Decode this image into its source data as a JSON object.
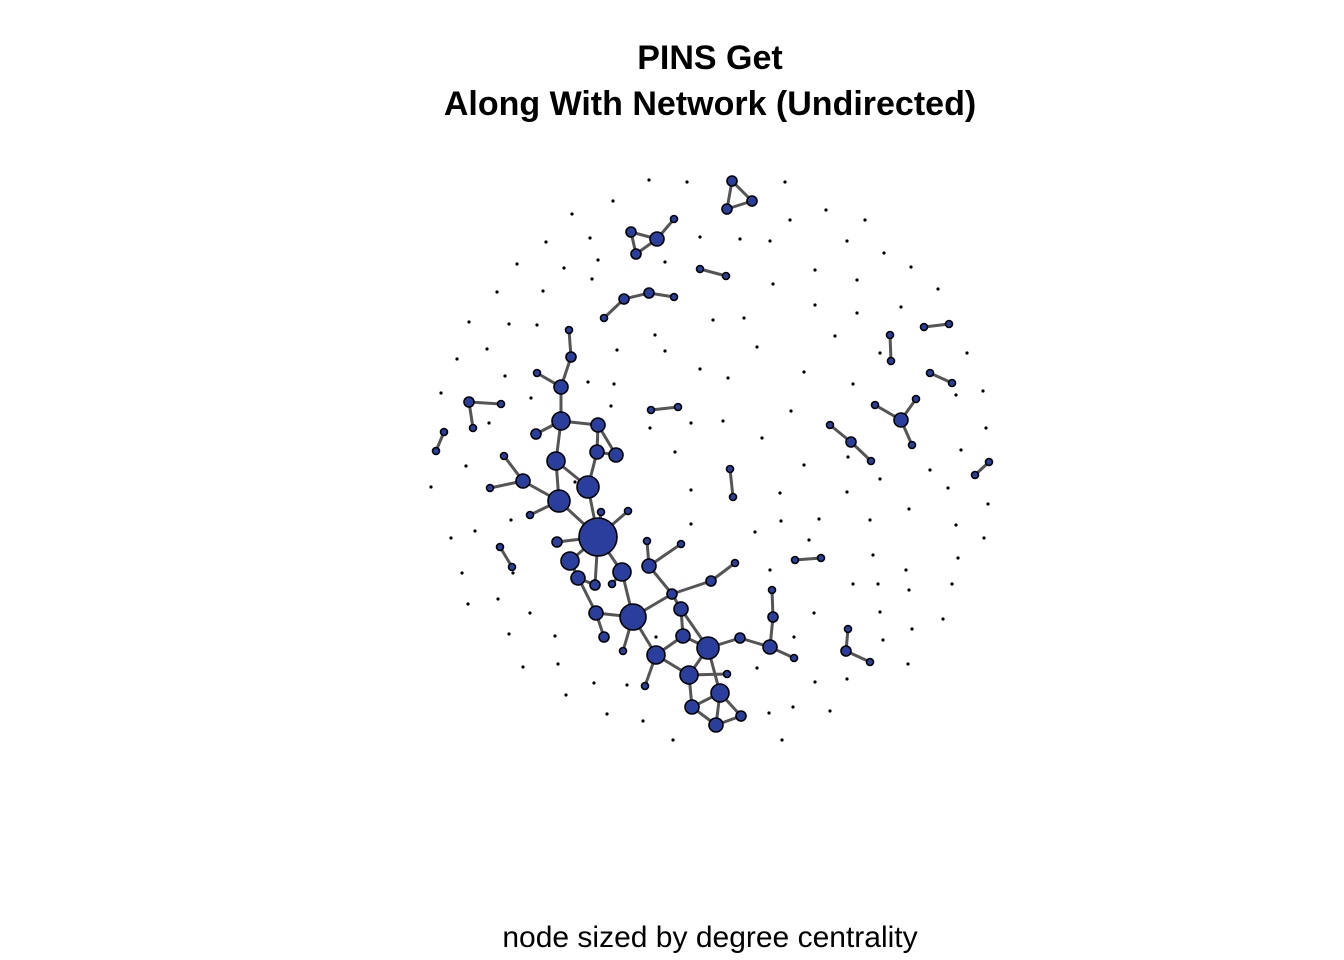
{
  "title_line1": "PINS Get",
  "title_line2": "Along With Network (Undirected)",
  "caption": "node sized by degree centrality",
  "colors": {
    "node_fill": "#2a3f9d",
    "node_stroke": "#000000",
    "edge": "#555555"
  }
}
